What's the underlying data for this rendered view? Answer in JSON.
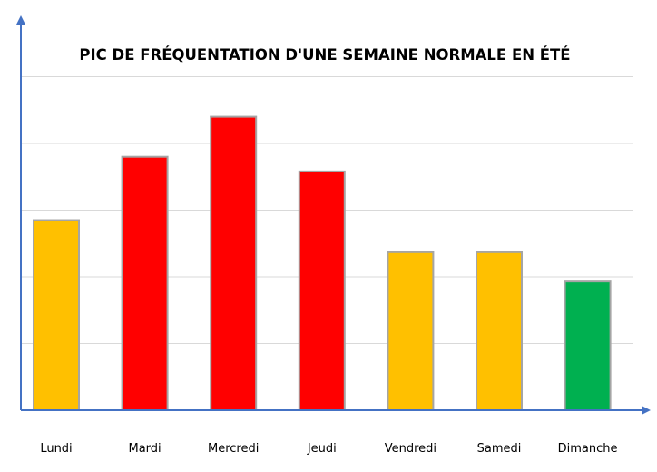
{
  "chart_data": {
    "type": "bar",
    "title": "PIC DE FRÉQUENTATION D'UNE SEMAINE NORMALE EN ÉTÉ",
    "xlabel": "",
    "ylabel": "",
    "categories": [
      "Lundi",
      "Mardi",
      "Mercredi",
      "Jeudi",
      "Vendredi",
      "Samedi",
      "Dimanche"
    ],
    "values": [
      2.85,
      3.8,
      4.4,
      3.58,
      2.37,
      2.37,
      1.93
    ],
    "ylim": [
      0,
      6
    ],
    "grid": true,
    "tick_labels_shown": false,
    "legend": "none",
    "bar_colors": [
      "#FFC000",
      "#FF0000",
      "#FF0000",
      "#FF0000",
      "#FFC000",
      "#FFC000",
      "#00B050"
    ],
    "axis_color": "#4472C4",
    "gridline_color": "#D9D9D9",
    "bar_border_color": "#A5A5A5"
  }
}
